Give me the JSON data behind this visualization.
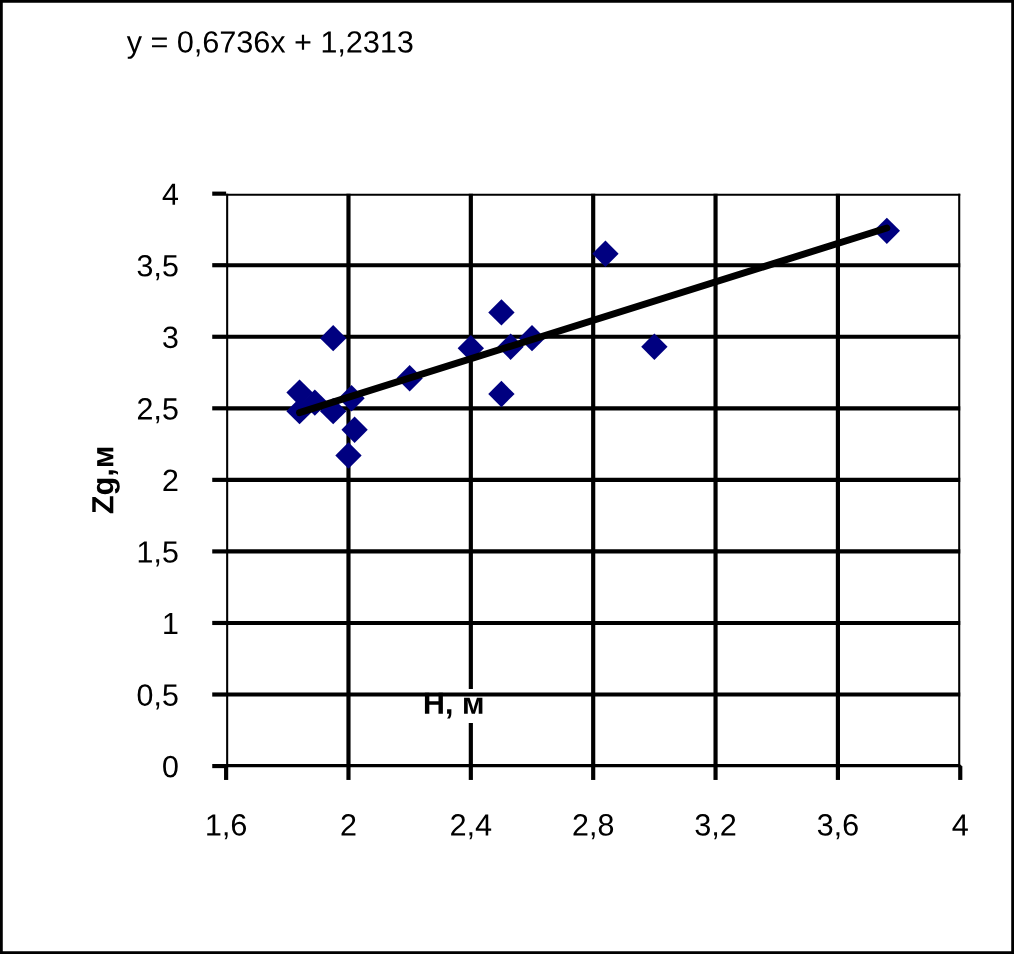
{
  "chart_data": {
    "type": "scatter",
    "xlabel": "H, м",
    "ylabel": "Zg,м",
    "annotations": [
      "y = 0,6736x + 1,2313"
    ],
    "series": [
      {
        "color": "#000080",
        "marker": "diamond",
        "x": [
          1.84,
          1.84,
          1.89,
          1.95,
          1.95,
          2.01,
          2.02,
          2.0,
          2.2,
          2.4,
          2.5,
          2.5,
          2.53,
          2.6,
          2.84,
          3.0,
          3.76
        ],
        "values": [
          2.61,
          2.48,
          2.54,
          2.99,
          2.48,
          2.57,
          2.35,
          2.17,
          2.71,
          2.92,
          3.17,
          2.6,
          2.93,
          2.99,
          3.58,
          2.93,
          3.74
        ]
      },
      {
        "type": "line",
        "color": "#000000",
        "marker": "none",
        "line_style": "solid",
        "x": [
          1.84,
          3.76
        ],
        "values": [
          2.47,
          3.76
        ]
      }
    ],
    "xlim": [
      1.6,
      4
    ],
    "xticks": [
      {
        "value": 1.6,
        "label": "1,6"
      },
      2,
      {
        "value": 2.4,
        "label": "2,4"
      },
      {
        "value": 2.8,
        "label": "2,8"
      },
      {
        "value": 3.2,
        "label": "3,2"
      },
      {
        "value": 3.6,
        "label": "3,6"
      },
      4
    ],
    "ylim": [
      0,
      4
    ],
    "yticks": [
      0,
      {
        "value": 0.5,
        "label": "0,5"
      },
      1,
      {
        "value": 1.5,
        "label": "1,5"
      },
      2,
      {
        "value": 2.5,
        "label": "2,5"
      },
      3,
      {
        "value": 3.5,
        "label": "3,5"
      },
      4
    ],
    "grid": true,
    "legend": false
  }
}
